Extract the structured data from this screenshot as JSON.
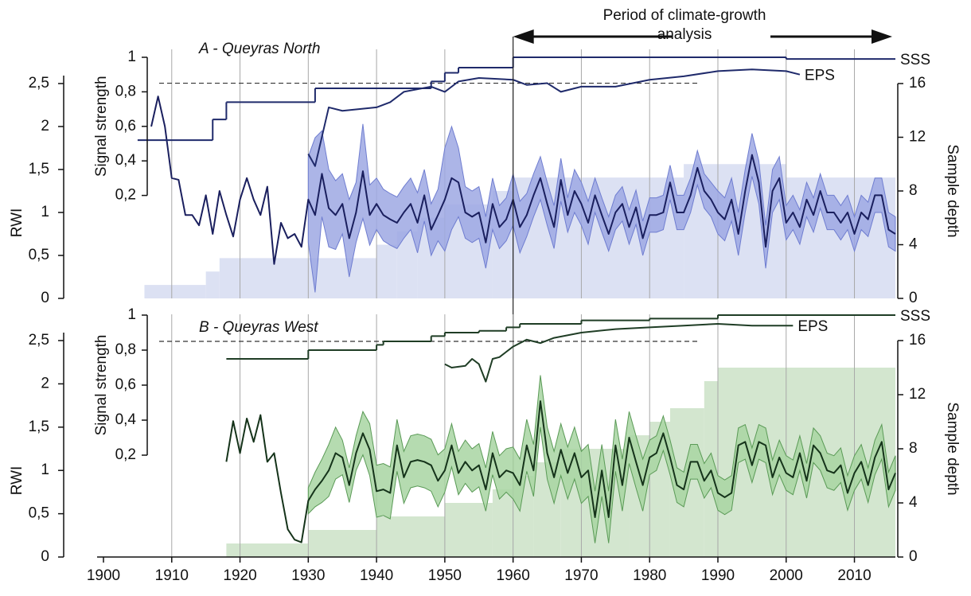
{
  "chart_data": [
    {
      "type": "line",
      "title": "A - Queyras North",
      "ylabel": "RWI",
      "ylim": [
        0,
        2.5
      ],
      "yticks": [
        0,
        {
          "value": 0.5,
          "label": "0,5"
        },
        1,
        {
          "value": 1.5,
          "label": "1,5"
        },
        2,
        {
          "value": 2.5,
          "label": "2,5"
        }
      ],
      "y2label": "Sample depth",
      "y2lim": [
        0,
        16
      ],
      "y2ticks": [
        0,
        4,
        8,
        12,
        16
      ],
      "y3label": "Signal strength",
      "y3lim": [
        0,
        1
      ],
      "y3ticks": [
        {
          "value": 0.2,
          "label": "0,2"
        },
        {
          "value": 0.4,
          "label": "0,4"
        },
        {
          "value": 0.6,
          "label": "0,6"
        },
        {
          "value": 0.8,
          "label": "0,8"
        },
        1
      ],
      "threshold": 0.85,
      "annotation": {
        "text": "Period of climate-growth analysis",
        "range": [
          1960,
          2016
        ]
      },
      "series": [
        {
          "color": "#dce1f3",
          "axis": "y2",
          "area": true,
          "step": true,
          "x": [
            1905,
            1906,
            1915,
            1917,
            1940,
            1943,
            1946,
            1950,
            1957,
            1960,
            1985,
            2000,
            2016
          ],
          "values": [
            0,
            1,
            2,
            3,
            4,
            5,
            6,
            7,
            8,
            9,
            10,
            9,
            9
          ]
        },
        {
          "color": "#1a1f5e",
          "band_color": "#9ea8e3",
          "band_edge": "#6f7dd0",
          "x": [
            1907,
            1908,
            1909,
            1910,
            1911,
            1912,
            1913,
            1914,
            1915,
            1916,
            1917,
            1918,
            1919,
            1920,
            1921,
            1922,
            1923,
            1924,
            1925,
            1926,
            1927,
            1928,
            1929,
            1930,
            1931,
            1932,
            1933,
            1934,
            1935,
            1936,
            1937,
            1938,
            1939,
            1940,
            1941,
            1942,
            1943,
            1944,
            1945,
            1946,
            1947,
            1948,
            1949,
            1950,
            1951,
            1952,
            1953,
            1954,
            1955,
            1956,
            1957,
            1958,
            1959,
            1960,
            1961,
            1962,
            1963,
            1964,
            1965,
            1966,
            1967,
            1968,
            1969,
            1970,
            1971,
            1972,
            1973,
            1974,
            1975,
            1976,
            1977,
            1978,
            1979,
            1980,
            1981,
            1982,
            1983,
            1984,
            1985,
            1986,
            1987,
            1988,
            1989,
            1990,
            1991,
            1992,
            1993,
            1994,
            1995,
            1996,
            1997,
            1998,
            1999,
            2000,
            2001,
            2002,
            2003,
            2004,
            2005,
            2006,
            2007,
            2008,
            2009,
            2010,
            2011,
            2012,
            2013,
            2014,
            2015,
            2016
          ],
          "values": [
            2.0,
            2.35,
            2.0,
            1.4,
            1.38,
            0.97,
            0.97,
            0.85,
            1.2,
            0.75,
            1.25,
            0.97,
            0.72,
            1.15,
            1.4,
            1.15,
            0.97,
            1.3,
            0.4,
            0.88,
            0.7,
            0.75,
            0.6,
            1.15,
            0.97,
            1.45,
            1.05,
            0.97,
            1.1,
            0.7,
            1.0,
            1.48,
            0.97,
            1.1,
            0.97,
            0.92,
            0.88,
            1.0,
            1.1,
            0.88,
            1.2,
            0.8,
            0.97,
            1.15,
            1.4,
            1.35,
            1.0,
            0.95,
            1.0,
            0.65,
            1.1,
            0.83,
            0.92,
            1.15,
            0.83,
            0.97,
            1.2,
            1.4,
            1.1,
            0.83,
            1.38,
            0.97,
            1.25,
            1.1,
            0.88,
            1.2,
            0.97,
            0.75,
            1.0,
            1.1,
            0.83,
            1.06,
            0.7,
            0.97,
            0.97,
            1.0,
            1.35,
            1.0,
            1.0,
            1.2,
            1.52,
            1.25,
            1.15,
            1.0,
            0.92,
            1.15,
            0.75,
            1.25,
            1.67,
            1.35,
            0.6,
            1.25,
            1.4,
            0.88,
            1.0,
            0.83,
            1.15,
            0.97,
            1.25,
            1.0,
            1.0,
            0.88,
            1.0,
            0.75,
            1.0,
            0.92,
            1.2,
            1.2,
            0.8,
            0.75
          ],
          "spread": [
            null,
            null,
            null,
            null,
            null,
            null,
            null,
            null,
            null,
            null,
            null,
            null,
            null,
            null,
            null,
            null,
            null,
            null,
            null,
            null,
            null,
            null,
            null,
            0.5,
            0.9,
            0.5,
            0.45,
            0.4,
            0.35,
            0.45,
            0.35,
            0.55,
            0.35,
            0.3,
            0.3,
            0.3,
            0.3,
            0.3,
            0.3,
            0.35,
            0.3,
            0.3,
            0.3,
            0.6,
            0.6,
            0.4,
            0.3,
            0.3,
            0.3,
            0.3,
            0.3,
            0.25,
            0.25,
            0.3,
            0.3,
            0.25,
            0.25,
            0.25,
            0.25,
            0.25,
            0.25,
            0.2,
            0.25,
            0.25,
            0.25,
            0.2,
            0.2,
            0.2,
            0.2,
            0.2,
            0.2,
            0.2,
            0.2,
            0.2,
            0.2,
            0.2,
            0.2,
            0.2,
            0.2,
            0.2,
            0.2,
            0.2,
            0.2,
            0.25,
            0.25,
            0.25,
            0.25,
            0.25,
            0.25,
            0.25,
            0.25,
            0.25,
            0.25,
            0.2,
            0.2,
            0.2,
            0.2,
            0.2,
            0.2,
            0.2,
            0.2,
            0.2,
            0.2,
            0.2,
            0.2,
            0.2,
            0.2,
            0.2,
            0.2,
            0.2
          ]
        },
        {
          "name": "SSS",
          "color": "#1f2a6b",
          "axis": "y3",
          "step": true,
          "x": [
            1905,
            1916,
            1918,
            1931,
            1948,
            1950,
            1952,
            1960,
            2000,
            2016
          ],
          "values": [
            0.52,
            0.64,
            0.74,
            0.82,
            0.86,
            0.91,
            0.94,
            1.0,
            0.99,
            0.99
          ]
        },
        {
          "name": "EPS",
          "color": "#1f2a6b",
          "axis": "y3",
          "x": [
            1930,
            1931,
            1933,
            1935,
            1940,
            1942,
            1944,
            1948,
            1950,
            1952,
            1955,
            1960,
            1962,
            1965,
            1967,
            1970,
            1975,
            1980,
            1985,
            1990,
            1995,
            2000,
            2002
          ],
          "values": [
            0.44,
            0.37,
            0.71,
            0.69,
            0.71,
            0.74,
            0.8,
            0.83,
            0.8,
            0.86,
            0.88,
            0.87,
            0.84,
            0.85,
            0.8,
            0.83,
            0.83,
            0.87,
            0.89,
            0.92,
            0.93,
            0.92,
            0.9
          ]
        }
      ]
    },
    {
      "type": "line",
      "title": "B - Queyras West",
      "xlim": [
        1900,
        2016
      ],
      "xticks": [
        1900,
        1910,
        1920,
        1930,
        1940,
        1950,
        1960,
        1970,
        1980,
        1990,
        2000,
        2010
      ],
      "ylabel": "RWI",
      "ylim": [
        0,
        2.5
      ],
      "yticks": [
        0,
        {
          "value": 0.5,
          "label": "0,5"
        },
        1,
        {
          "value": 1.5,
          "label": "1,5"
        },
        2,
        {
          "value": 2.5,
          "label": "2,5"
        }
      ],
      "y2label": "Sample depth",
      "y2lim": [
        0,
        16
      ],
      "y2ticks": [
        0,
        4,
        8,
        12,
        16
      ],
      "y3label": "Signal strength",
      "y3lim": [
        0,
        1
      ],
      "y3ticks": [
        {
          "value": 0.2,
          "label": "0,2"
        },
        {
          "value": 0.4,
          "label": "0,4"
        },
        {
          "value": 0.6,
          "label": "0,6"
        },
        {
          "value": 0.8,
          "label": "0,8"
        },
        1
      ],
      "threshold": 0.85,
      "series": [
        {
          "color": "#d3e6cf",
          "axis": "y2",
          "area": true,
          "step": true,
          "x": [
            1917,
            1918,
            1930,
            1940,
            1950,
            1957,
            1960,
            1963,
            1967,
            1977,
            1980,
            1983,
            1988,
            1990,
            2016
          ],
          "values": [
            0,
            1,
            2,
            3,
            4,
            5,
            6,
            7,
            8,
            9,
            10,
            11,
            13,
            14,
            14
          ]
        },
        {
          "color": "#15331a",
          "band_color": "#a8d5a2",
          "band_edge": "#5a9a56",
          "x": [
            1918,
            1919,
            1920,
            1921,
            1922,
            1923,
            1924,
            1925,
            1926,
            1927,
            1928,
            1929,
            1930,
            1931,
            1932,
            1933,
            1934,
            1935,
            1936,
            1937,
            1938,
            1939,
            1940,
            1941,
            1942,
            1943,
            1944,
            1945,
            1946,
            1947,
            1948,
            1949,
            1950,
            1951,
            1952,
            1953,
            1954,
            1955,
            1956,
            1957,
            1958,
            1959,
            1960,
            1961,
            1962,
            1963,
            1964,
            1965,
            1966,
            1967,
            1968,
            1969,
            1970,
            1971,
            1972,
            1973,
            1974,
            1975,
            1976,
            1977,
            1978,
            1979,
            1980,
            1981,
            1982,
            1983,
            1984,
            1985,
            1986,
            1987,
            1988,
            1989,
            1990,
            1991,
            1992,
            1993,
            1994,
            1995,
            1996,
            1997,
            1998,
            1999,
            2000,
            2001,
            2002,
            2003,
            2004,
            2005,
            2006,
            2007,
            2008,
            2009,
            2010,
            2011,
            2012,
            2013,
            2014,
            2015,
            2016
          ],
          "values": [
            1.1,
            1.57,
            1.2,
            1.6,
            1.33,
            1.64,
            1.1,
            1.2,
            0.74,
            0.32,
            0.2,
            0.17,
            0.65,
            0.78,
            0.88,
            1.0,
            1.2,
            1.15,
            0.83,
            1.2,
            1.43,
            1.24,
            0.76,
            0.78,
            0.74,
            1.29,
            0.92,
            1.1,
            1.12,
            1.1,
            1.06,
            0.88,
            1.0,
            1.29,
            0.97,
            1.1,
            1.0,
            1.06,
            0.78,
            1.2,
            0.92,
            1.0,
            0.97,
            0.83,
            1.29,
            1.0,
            1.8,
            1.2,
            0.92,
            1.24,
            0.97,
            1.2,
            0.92,
            1.0,
            0.46,
            1.0,
            0.46,
            1.29,
            0.83,
            1.38,
            1.1,
            0.83,
            1.15,
            1.2,
            1.43,
            1.15,
            0.83,
            0.78,
            1.1,
            1.1,
            0.88,
            1.0,
            0.74,
            0.69,
            0.74,
            1.29,
            1.33,
            1.06,
            1.33,
            1.29,
            0.92,
            1.15,
            0.97,
            0.92,
            1.2,
            0.88,
            1.29,
            1.2,
            1.0,
            0.97,
            1.06,
            0.74,
            0.97,
            1.1,
            0.83,
            1.15,
            1.33,
            0.78,
            0.97
          ],
          "spread": [
            null,
            null,
            null,
            null,
            null,
            null,
            null,
            null,
            null,
            null,
            null,
            null,
            0.15,
            0.2,
            0.25,
            0.3,
            0.3,
            0.2,
            0.2,
            0.2,
            0.25,
            0.3,
            0.3,
            0.3,
            0.3,
            0.3,
            0.3,
            0.3,
            0.3,
            0.3,
            0.3,
            0.3,
            0.25,
            0.25,
            0.25,
            0.25,
            0.25,
            0.25,
            0.25,
            0.25,
            0.25,
            0.25,
            0.3,
            0.3,
            0.3,
            0.3,
            0.3,
            0.3,
            0.3,
            0.3,
            0.3,
            0.3,
            0.3,
            0.3,
            0.3,
            0.3,
            0.3,
            0.3,
            0.3,
            0.3,
            0.3,
            0.3,
            0.2,
            0.2,
            0.2,
            0.2,
            0.2,
            0.2,
            0.2,
            0.2,
            0.2,
            0.2,
            0.2,
            0.2,
            0.2,
            0.2,
            0.2,
            0.2,
            0.2,
            0.2,
            0.2,
            0.2,
            0.2,
            0.2,
            0.2,
            0.2,
            0.2,
            0.2,
            0.2,
            0.2,
            0.2,
            0.2,
            0.2,
            0.2,
            0.2,
            0.2,
            0.2,
            0.2,
            0.2
          ]
        },
        {
          "name": "SSS",
          "color": "#1f3d25",
          "axis": "y3",
          "step": true,
          "x": [
            1918,
            1930,
            1940,
            1941,
            1948,
            1950,
            1955,
            1959,
            1961,
            1970,
            1980,
            1990,
            2016
          ],
          "values": [
            0.75,
            0.8,
            0.83,
            0.85,
            0.88,
            0.9,
            0.91,
            0.93,
            0.95,
            0.97,
            0.98,
            1.0,
            1.0
          ]
        },
        {
          "name": "EPS",
          "color": "#1f3d25",
          "axis": "y3",
          "x": [
            1950,
            1951,
            1953,
            1954,
            1955,
            1956,
            1957,
            1958,
            1960,
            1962,
            1963,
            1964,
            1966,
            1970,
            1975,
            1980,
            1985,
            1990,
            1995,
            2000,
            2001
          ],
          "values": [
            0.72,
            0.7,
            0.71,
            0.75,
            0.72,
            0.62,
            0.75,
            0.76,
            0.82,
            0.86,
            0.85,
            0.84,
            0.87,
            0.9,
            0.92,
            0.93,
            0.94,
            0.95,
            0.94,
            0.94,
            0.94
          ]
        }
      ]
    }
  ]
}
